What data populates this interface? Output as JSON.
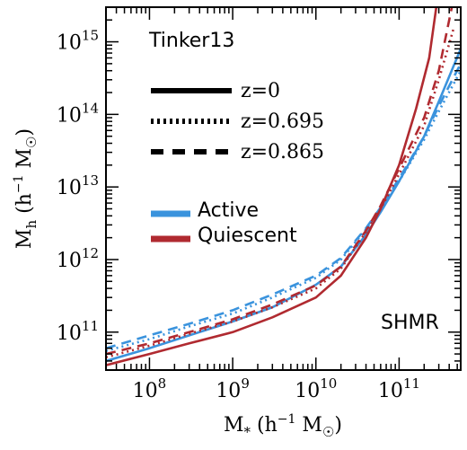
{
  "chart_data": {
    "type": "line",
    "title": "",
    "xlabel": "M* (h⁻¹ M☉)",
    "ylabel": "Mh (h⁻¹ M☉)",
    "x_scale": "log",
    "y_scale": "log",
    "xlim": [
      30000000.0,
      550000000000.0
    ],
    "ylim": [
      30000000000.0,
      3000000000000000.0
    ],
    "grid": false,
    "x_ticks": [
      {
        "value": 100000000.0,
        "base": "10",
        "exp": "8"
      },
      {
        "value": 1000000000.0,
        "base": "10",
        "exp": "9"
      },
      {
        "value": 10000000000.0,
        "base": "10",
        "exp": "10"
      },
      {
        "value": 100000000000.0,
        "base": "10",
        "exp": "11"
      }
    ],
    "y_ticks": [
      {
        "value": 100000000000.0,
        "base": "10",
        "exp": "11"
      },
      {
        "value": 1000000000000.0,
        "base": "10",
        "exp": "12"
      },
      {
        "value": 10000000000000.0,
        "base": "10",
        "exp": "13"
      },
      {
        "value": 100000000000000.0,
        "base": "10",
        "exp": "14"
      },
      {
        "value": 1000000000000000.0,
        "base": "10",
        "exp": "15"
      }
    ],
    "annotations": {
      "model": "Tinker13",
      "relation": "SHMR"
    },
    "colors": {
      "active": "#3a93dd",
      "quiescent": "#b02a30"
    },
    "legend_styles": [
      {
        "label": "z=0",
        "dash": "solid"
      },
      {
        "label": "z=0.695",
        "dash": "dotted"
      },
      {
        "label": "z=0.865",
        "dash": "dashed"
      }
    ],
    "legend_colors": [
      {
        "label": "Active",
        "color": "#3a93dd"
      },
      {
        "label": "Quiescent",
        "color": "#b02a30"
      }
    ],
    "series": [
      {
        "population": "active",
        "redshift": "z=0",
        "dash": "solid",
        "color": "#3a93dd",
        "x": [
          30000000.0,
          100000000.0,
          300000000.0,
          1000000000.0,
          3000000000.0,
          10000000000.0,
          20000000000.0,
          40000000000.0,
          60000000000.0,
          100000000000.0,
          200000000000.0,
          300000000000.0,
          550000000000.0
        ],
        "y": [
          40000000000.0,
          60000000000.0,
          90000000000.0,
          140000000000.0,
          220000000000.0,
          450000000000.0,
          800000000000.0,
          2200000000000.0,
          4500000000000.0,
          12000000000000.0,
          50000000000000.0,
          150000000000000.0,
          800000000000000.0
        ]
      },
      {
        "population": "active",
        "redshift": "z=0.695",
        "dash": "dotted",
        "color": "#3a93dd",
        "x": [
          30000000.0,
          100000000.0,
          300000000.0,
          1000000000.0,
          3000000000.0,
          10000000000.0,
          20000000000.0,
          40000000000.0,
          60000000000.0,
          100000000000.0,
          200000000000.0,
          300000000000.0,
          550000000000.0
        ],
        "y": [
          55000000000.0,
          80000000000.0,
          120000000000.0,
          180000000000.0,
          300000000000.0,
          560000000000.0,
          1000000000000.0,
          2600000000000.0,
          5000000000000.0,
          12000000000000.0,
          45000000000000.0,
          110000000000000.0,
          400000000000000.0
        ]
      },
      {
        "population": "active",
        "redshift": "z=0.865",
        "dash": "dashed",
        "color": "#3a93dd",
        "x": [
          30000000.0,
          100000000.0,
          300000000.0,
          1000000000.0,
          3000000000.0,
          10000000000.0,
          20000000000.0,
          40000000000.0,
          60000000000.0,
          100000000000.0,
          200000000000.0,
          300000000000.0,
          550000000000.0
        ],
        "y": [
          60000000000.0,
          90000000000.0,
          130000000000.0,
          200000000000.0,
          330000000000.0,
          600000000000.0,
          1050000000000.0,
          2700000000000.0,
          5200000000000.0,
          13000000000000.0,
          50000000000000.0,
          130000000000000.0,
          500000000000000.0
        ]
      },
      {
        "population": "quiescent",
        "redshift": "z=0",
        "dash": "solid",
        "color": "#b02a30",
        "x": [
          30000000.0,
          100000000.0,
          300000000.0,
          1000000000.0,
          3000000000.0,
          10000000000.0,
          20000000000.0,
          40000000000.0,
          60000000000.0,
          100000000000.0,
          160000000000.0,
          230000000000.0,
          280000000000.0
        ],
        "y": [
          35000000000.0,
          50000000000.0,
          70000000000.0,
          100000000000.0,
          160000000000.0,
          300000000000.0,
          600000000000.0,
          2000000000000.0,
          5000000000000.0,
          20000000000000.0,
          120000000000000.0,
          600000000000000.0,
          3000000000000000.0
        ]
      },
      {
        "population": "quiescent",
        "redshift": "z=0.695",
        "dash": "dotted",
        "color": "#b02a30",
        "x": [
          30000000.0,
          100000000.0,
          300000000.0,
          1000000000.0,
          3000000000.0,
          10000000000.0,
          20000000000.0,
          40000000000.0,
          60000000000.0,
          100000000000.0,
          200000000000.0,
          300000000000.0,
          450000000000.0
        ],
        "y": [
          45000000000.0,
          65000000000.0,
          95000000000.0,
          140000000000.0,
          220000000000.0,
          400000000000.0,
          750000000000.0,
          2400000000000.0,
          5000000000000.0,
          15000000000000.0,
          70000000000000.0,
          300000000000000.0,
          1500000000000000.0
        ]
      },
      {
        "population": "quiescent",
        "redshift": "z=0.865",
        "dash": "dashed",
        "color": "#b02a30",
        "x": [
          30000000.0,
          100000000.0,
          300000000.0,
          1000000000.0,
          3000000000.0,
          10000000000.0,
          20000000000.0,
          40000000000.0,
          60000000000.0,
          100000000000.0,
          200000000000.0,
          300000000000.0,
          430000000000.0
        ],
        "y": [
          50000000000.0,
          70000000000.0,
          100000000000.0,
          150000000000.0,
          240000000000.0,
          440000000000.0,
          800000000000.0,
          2500000000000.0,
          5500000000000.0,
          18000000000000.0,
          90000000000000.0,
          400000000000000.0,
          3000000000000000.0
        ]
      }
    ]
  }
}
